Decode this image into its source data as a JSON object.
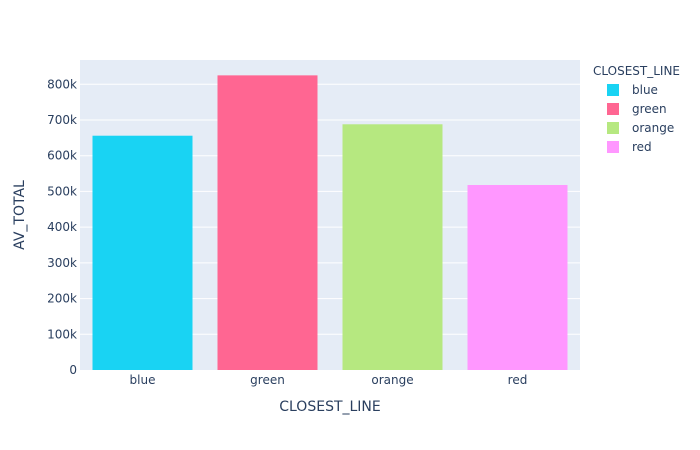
{
  "chart_data": {
    "type": "bar",
    "categories": [
      "blue",
      "green",
      "orange",
      "red"
    ],
    "values": [
      656000,
      825000,
      688000,
      518000
    ],
    "colors": {
      "blue": "#19d3f3",
      "green": "#ff6692",
      "orange": "#b6e880",
      "red": "#ff97ff"
    },
    "xlabel": "CLOSEST_LINE",
    "ylabel": "AV_TOTAL",
    "ylim": [
      0,
      868000
    ],
    "y_ticks": [
      0,
      100000,
      200000,
      300000,
      400000,
      500000,
      600000,
      700000,
      800000
    ],
    "y_tick_labels": [
      "0",
      "100k",
      "200k",
      "300k",
      "400k",
      "500k",
      "600k",
      "700k",
      "800k"
    ],
    "grid": true,
    "legend": {
      "title": "CLOSEST_LINE",
      "placement": "top-right",
      "entries": [
        "blue",
        "green",
        "orange",
        "red"
      ]
    },
    "plot_background": "#e5ecf6"
  }
}
